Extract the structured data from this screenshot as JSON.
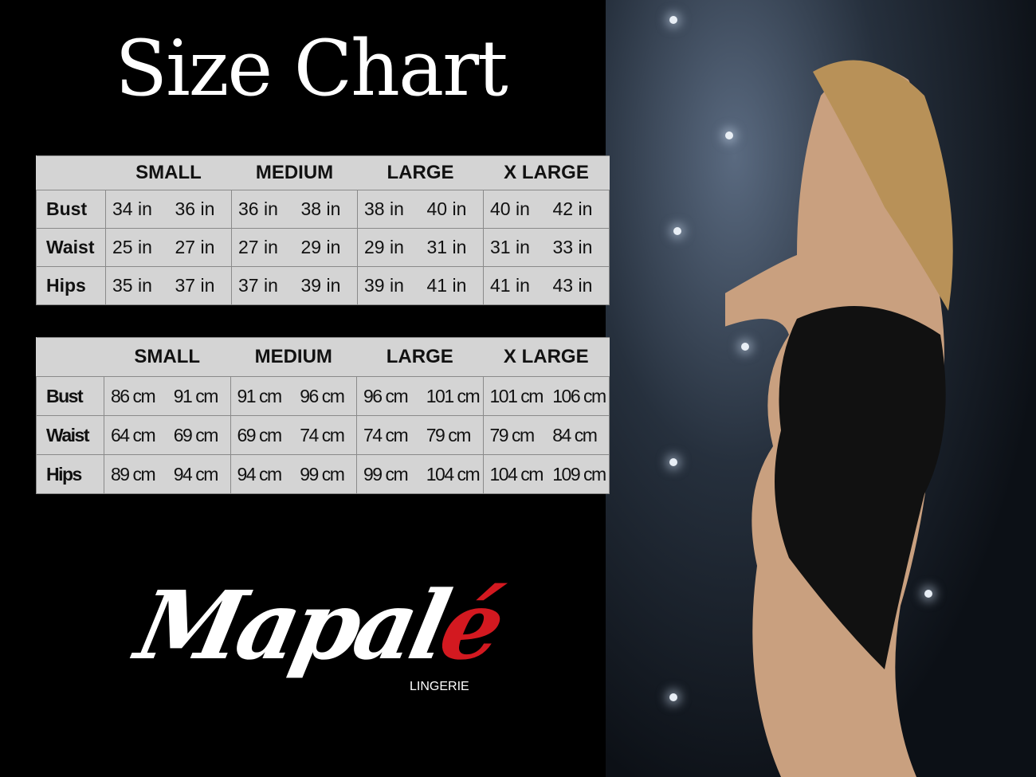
{
  "title": "Size Chart",
  "sizes": [
    "SMALL",
    "MEDIUM",
    "LARGE",
    "X LARGE"
  ],
  "inches_table": {
    "rows": [
      {
        "label": "Bust",
        "values": [
          "34 in",
          "36 in",
          "36 in",
          "38 in",
          "38 in",
          "40 in",
          "40 in",
          "42 in"
        ]
      },
      {
        "label": "Waist",
        "values": [
          "25 in",
          "27 in",
          "27 in",
          "29 in",
          "29 in",
          "31 in",
          "31 in",
          "33 in"
        ]
      },
      {
        "label": "Hips",
        "values": [
          "35 in",
          "37 in",
          "37 in",
          "39 in",
          "39 in",
          "41 in",
          "41 in",
          "43 in"
        ]
      }
    ]
  },
  "cm_table": {
    "rows": [
      {
        "label": "Bust",
        "values": [
          "86 cm",
          "91 cm",
          "91 cm",
          "96 cm",
          "96 cm",
          "101 cm",
          "101 cm",
          "106 cm"
        ]
      },
      {
        "label": "Waist",
        "values": [
          "64 cm",
          "69 cm",
          "69 cm",
          "74 cm",
          "74 cm",
          "79  cm",
          "79 cm",
          "84 cm"
        ]
      },
      {
        "label": "Hips",
        "values": [
          "89 cm",
          "94 cm",
          "94 cm",
          "99 cm",
          "99 cm",
          "104 cm",
          "104 cm",
          "109 cm"
        ]
      }
    ]
  },
  "brand": {
    "name_main": "Mapal",
    "name_accent": "é",
    "subtitle": "LINGERIE",
    "accent_color": "#d31920"
  },
  "colors": {
    "table_bg": "#d4d4d4",
    "background": "#000000"
  }
}
